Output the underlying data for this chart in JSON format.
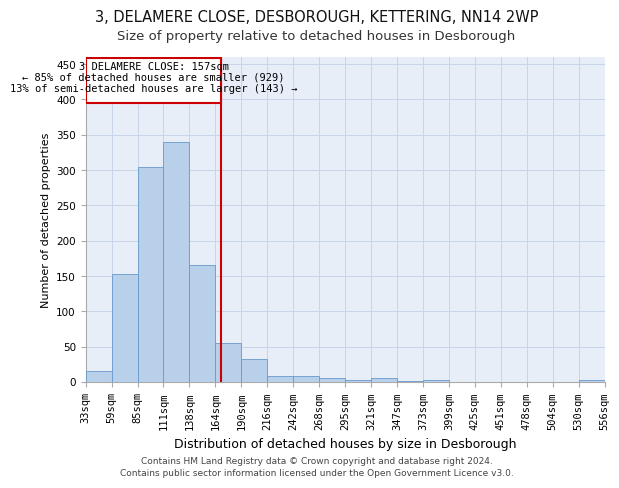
{
  "title1": "3, DELAMERE CLOSE, DESBOROUGH, KETTERING, NN14 2WP",
  "title2": "Size of property relative to detached houses in Desborough",
  "xlabel": "Distribution of detached houses by size in Desborough",
  "ylabel": "Number of detached properties",
  "footer1": "Contains HM Land Registry data © Crown copyright and database right 2024.",
  "footer2": "Contains public sector information licensed under the Open Government Licence v3.0.",
  "annotation_line1": "3 DELAMERE CLOSE: 157sqm",
  "annotation_line2": "← 85% of detached houses are smaller (929)",
  "annotation_line3": "13% of semi-detached houses are larger (143) →",
  "bins": [
    "33sqm",
    "59sqm",
    "85sqm",
    "111sqm",
    "138sqm",
    "164sqm",
    "190sqm",
    "216sqm",
    "242sqm",
    "268sqm",
    "295sqm",
    "321sqm",
    "347sqm",
    "373sqm",
    "399sqm",
    "425sqm",
    "451sqm",
    "478sqm",
    "504sqm",
    "530sqm",
    "556sqm"
  ],
  "values": [
    15,
    153,
    305,
    340,
    165,
    55,
    33,
    9,
    8,
    5,
    3,
    5,
    2,
    3,
    0,
    0,
    0,
    0,
    0,
    3
  ],
  "bar_color": "#b8d0ea",
  "bar_edge_color": "#6699cc",
  "grid_color": "#c8d4e8",
  "background_color": "#e8eef8",
  "vline_color": "#cc0000",
  "ylim": [
    0,
    460
  ],
  "title1_fontsize": 10.5,
  "title2_fontsize": 9.5,
  "ylabel_fontsize": 8,
  "xlabel_fontsize": 9,
  "tick_fontsize": 7.5,
  "footer_fontsize": 6.5,
  "annot_fontsize": 7.5
}
